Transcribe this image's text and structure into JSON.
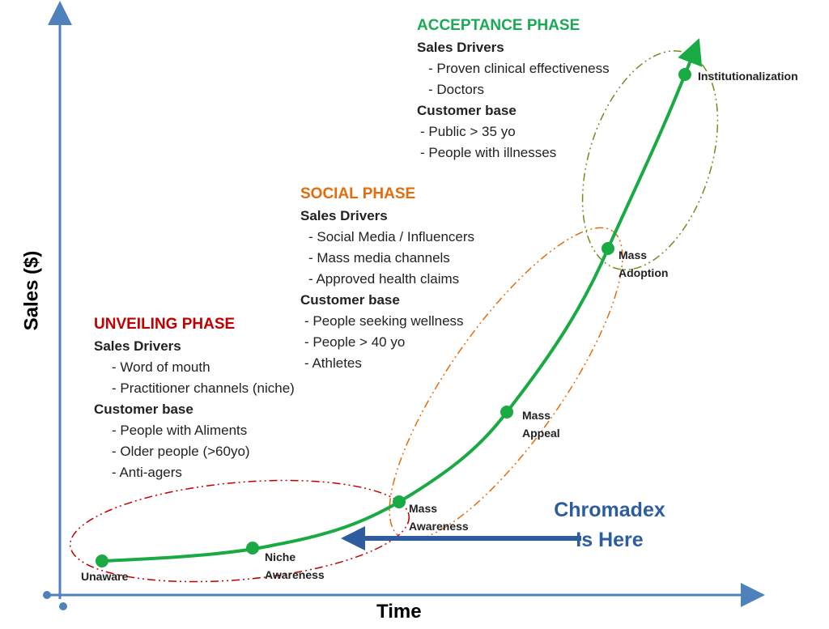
{
  "axes": {
    "x_label": "Time",
    "y_label": "Sales ($)"
  },
  "phases": [
    {
      "title": "UNVEILING PHASE",
      "drivers_heading": "Sales Drivers",
      "drivers": [
        "- Word of mouth",
        "- Practitioner channels (niche)"
      ],
      "customers_heading": "Customer base",
      "customers": [
        "- People with Aliments",
        "- Older people (>60yo)",
        "- Anti-agers"
      ]
    },
    {
      "title": "SOCIAL PHASE",
      "drivers_heading": "Sales Drivers",
      "drivers": [
        "- Social Media / Influencers",
        "- Mass media channels",
        "- Approved health claims"
      ],
      "customers_heading": "Customer base",
      "customers": [
        "- People seeking wellness",
        "- People > 40 yo",
        "- Athletes"
      ]
    },
    {
      "title": "ACCEPTANCE PHASE",
      "drivers_heading": "Sales Drivers",
      "drivers": [
        "- Proven clinical effectiveness",
        "- Doctors"
      ],
      "customers_heading": "Customer base",
      "customers": [
        "- Public > 35 yo",
        "- People with illnesses"
      ]
    }
  ],
  "stages": [
    {
      "label": "Unaware"
    },
    {
      "label": "Niche Awareness"
    },
    {
      "label": "Mass Awareness"
    },
    {
      "label": "Mass Appeal"
    },
    {
      "label": "Mass Adoption"
    },
    {
      "label": "Institutionalization"
    }
  ],
  "callout": {
    "text": "Chromadex Is Here"
  }
}
